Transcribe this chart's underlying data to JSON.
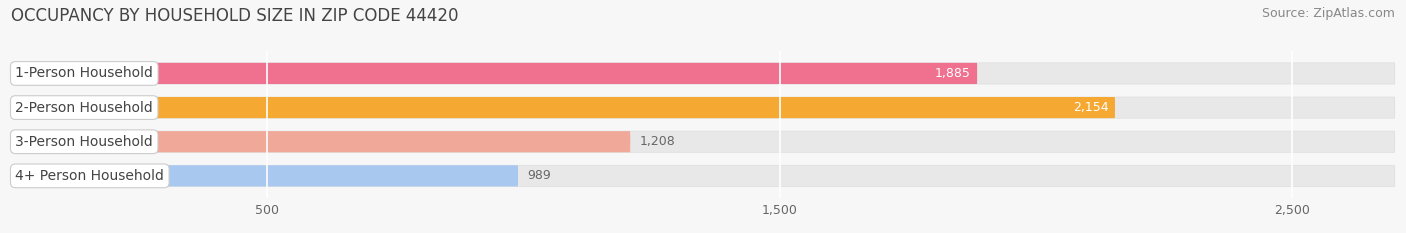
{
  "title": "OCCUPANCY BY HOUSEHOLD SIZE IN ZIP CODE 44420",
  "source": "Source: ZipAtlas.com",
  "categories": [
    "1-Person Household",
    "2-Person Household",
    "3-Person Household",
    "4+ Person Household"
  ],
  "values": [
    1885,
    2154,
    1208,
    989
  ],
  "bar_colors": [
    "#f07090",
    "#f5a832",
    "#f0a898",
    "#a8c8f0"
  ],
  "bar_bg_color": "#e8e8e8",
  "xlim": [
    0,
    2700
  ],
  "xticks": [
    500,
    1500,
    2500
  ],
  "title_fontsize": 12,
  "source_fontsize": 9,
  "bar_label_fontsize": 9,
  "category_fontsize": 10,
  "tick_fontsize": 9,
  "fig_bg_color": "#f7f7f7"
}
